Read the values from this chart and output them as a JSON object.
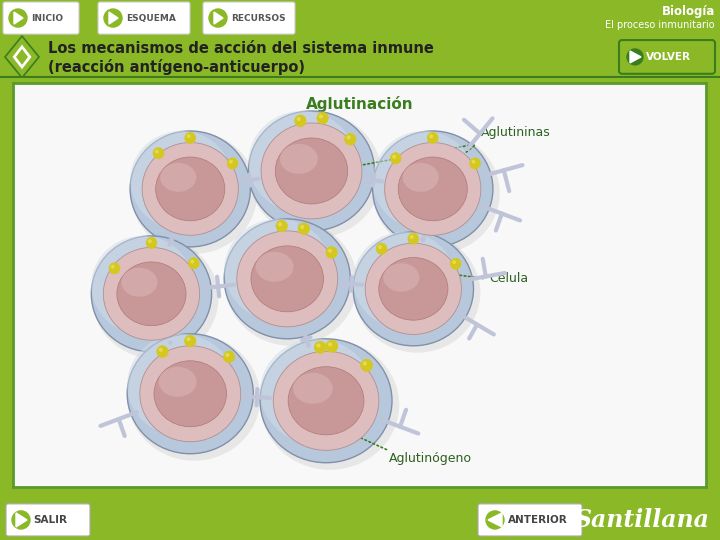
{
  "header_text_right_line1": "Biología",
  "header_text_right_line2": "El proceso inmunitario",
  "nav_buttons": [
    "INICIO",
    "ESQUEMA",
    "RECURSOS"
  ],
  "title_line1": "Los mecanismos de acción del sistema inmune",
  "title_line2": "(reacción antígeno-anticuerpo)",
  "volver_text": "VOLVER",
  "salir_text": "SALIR",
  "anterior_text": "ANTERIOR",
  "santillana_text": "Santillana",
  "section_title": "Aglutinación",
  "label_aglutininas": "Aglutininas",
  "label_celula": "Célula",
  "label_aglutinog": "Aglutinógeno",
  "green_dark": "#3a7d1e",
  "green_light": "#8ab827",
  "white": "#ffffff",
  "cell_outer": "#b8c8dc",
  "cell_outer2": "#d0dce8",
  "cell_inner": "#ddbdbd",
  "cell_nucleus": "#c89898",
  "cell_nuc_dark": "#b07878",
  "antigen_color": "#d4c820",
  "antigen_light": "#e8e060",
  "antibody_color": "#c0c4d8",
  "label_color": "#2d6020",
  "border_color": "#5a9a2a",
  "content_bg": "#f0f0f0",
  "btn_bg": "#ffffff"
}
